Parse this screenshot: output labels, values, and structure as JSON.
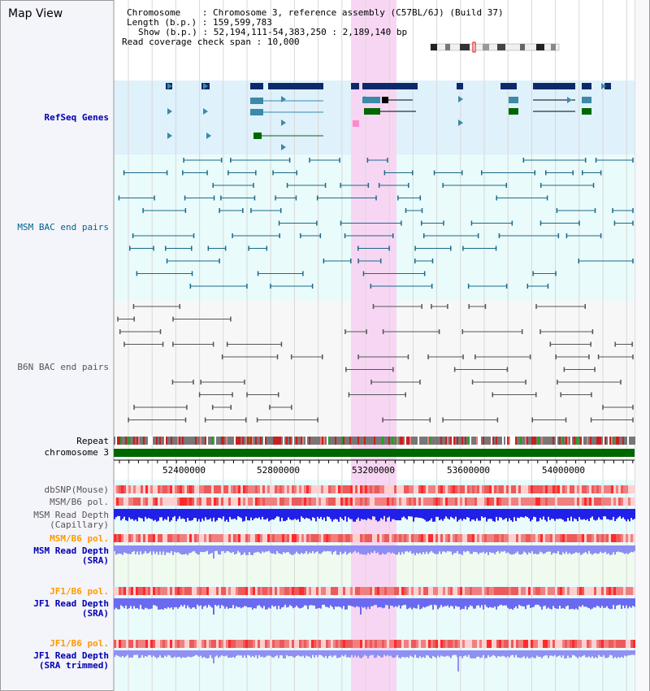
{
  "title": "Map View",
  "info": {
    "chromosome_label": "Chromosome",
    "chromosome_value": "Chromosome 3, reference assembly (C57BL/6J) (Build 37)",
    "length_label": "Length (b.p.)",
    "length_value": "159,599,783",
    "show_label": "Show (b.p.)",
    "show_value": "52,194,111-54,383,250 : 2,189,140 bp",
    "coverage_label": "Read coverage check span",
    "coverage_value": "10,000"
  },
  "tracks": {
    "refseq": "RefSeq Genes",
    "msm_bac": "MSM BAC end pairs",
    "b6n_bac": "B6N BAC end pairs",
    "repeat": "Repeat",
    "chromosome": "chromosome 3",
    "dbsnp": "dbSNP(Mouse)",
    "msm_b6_pol": "MSM/B6 pol.",
    "msm_read_depth_cap": "MSM Read Depth\n(Capillary)",
    "msm_b6_pol_2": "MSM/B6 pol.",
    "msm_read_depth_sra": "MSM Read Depth\n(SRA)",
    "jf1_b6_pol": "JF1/B6 pol.",
    "jf1_read_depth_sra": "JF1 Read Depth\n(SRA)",
    "jf1_b6_pol_2": "JF1/B6 pol.",
    "jf1_read_depth_trim": "JF1 Read Depth\n(SRA trimmed)"
  },
  "axis": {
    "ticks": [
      "52400000",
      "52800000",
      "53200000",
      "53600000",
      "54000000"
    ]
  },
  "colors": {
    "refseq_bg": "#dff1fb",
    "msm_bg": "#e7fbfb",
    "highlight": "#f7d6f3",
    "gene_dark": "#0c2a6a",
    "gene_green": "#006600",
    "msm_pair": "#1a6a8a",
    "b6n_pair": "#555555",
    "chromosome_bar": "#006600",
    "depth_blue": "#2020e8",
    "depth_light": "#7a7af0"
  }
}
